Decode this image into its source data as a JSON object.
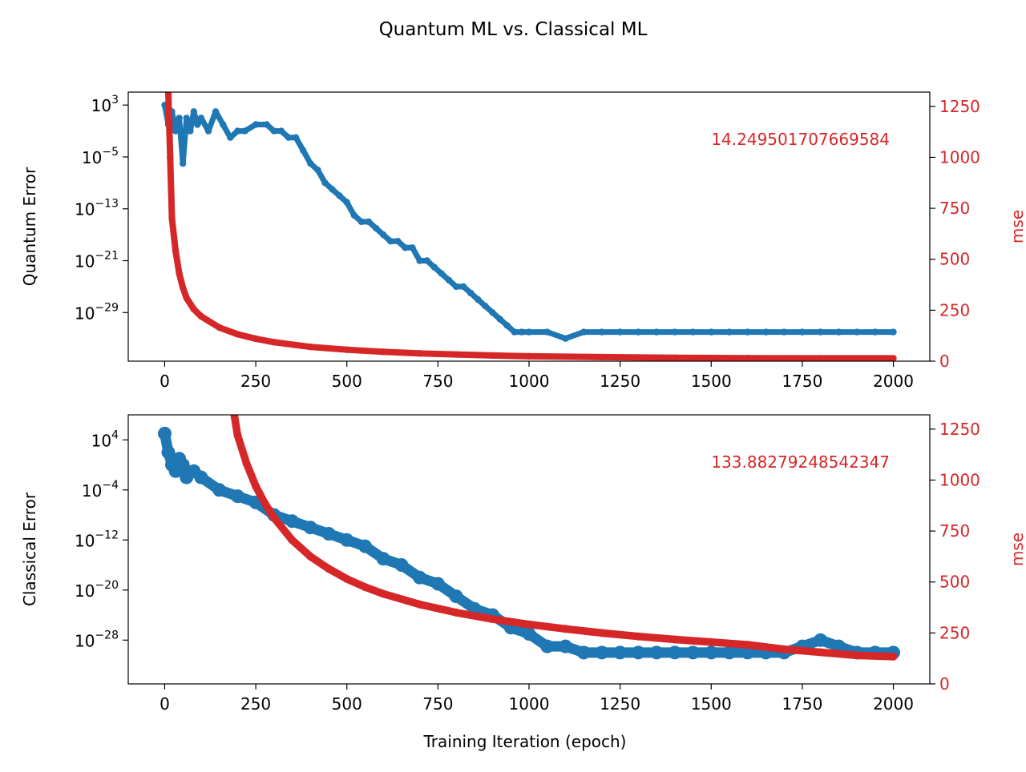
{
  "figure": {
    "title": "Quantum ML vs. Classical ML",
    "xlabel": "Training Iteration (epoch)"
  },
  "colors": {
    "error": "#1f77b4",
    "mse": "#d62728",
    "axis": "#000000"
  },
  "chart_data": [
    {
      "type": "scatter",
      "panel": "top",
      "xlabel": "",
      "ylabel": "Quantum Error",
      "y2label": "mse",
      "annotation": "14.249501707669584",
      "x_range": [
        -100,
        2100
      ],
      "x_ticks": [
        0,
        250,
        500,
        750,
        1000,
        1250,
        1500,
        1750,
        2000
      ],
      "y_scale": "log",
      "y_log_range": [
        -36.5,
        5
      ],
      "y_ticks": [
        {
          "exp": 3,
          "label": "10^3"
        },
        {
          "exp": -5,
          "label": "10^-5"
        },
        {
          "exp": -13,
          "label": "10^-13"
        },
        {
          "exp": -21,
          "label": "10^-21"
        },
        {
          "exp": -29,
          "label": "10^-29"
        }
      ],
      "y2_range": [
        0,
        1320
      ],
      "y2_ticks": [
        0,
        250,
        500,
        750,
        1000,
        1250
      ],
      "legend": "none",
      "grid": false,
      "series": [
        {
          "role": "error",
          "axis": "left",
          "x": [
            0,
            10,
            20,
            30,
            40,
            50,
            60,
            70,
            80,
            90,
            100,
            120,
            140,
            160,
            180,
            200,
            220,
            250,
            280,
            300,
            320,
            340,
            360,
            380,
            400,
            420,
            440,
            460,
            480,
            500,
            520,
            540,
            560,
            580,
            600,
            620,
            640,
            660,
            680,
            700,
            720,
            740,
            760,
            780,
            800,
            820,
            840,
            860,
            880,
            900,
            920,
            940,
            960,
            980,
            1000,
            1050,
            1100,
            1150,
            1200,
            1250,
            1300,
            1350,
            1400,
            1450,
            1500,
            1550,
            1600,
            1650,
            1700,
            1750,
            1800,
            1850,
            1900,
            1950,
            2000
          ],
          "log10_y": [
            3,
            0,
            2,
            -1,
            1,
            -6,
            1,
            -1,
            2,
            0,
            1,
            -1,
            2,
            0,
            -2,
            -1,
            -1,
            0,
            0,
            -1,
            -1,
            -2,
            -2,
            -4,
            -6,
            -7,
            -9,
            -10,
            -11,
            -12,
            -14,
            -15,
            -15,
            -16,
            -17,
            -18,
            -18,
            -19,
            -19,
            -21,
            -21,
            -22,
            -23,
            -24,
            -25,
            -25,
            -26,
            -27,
            -28,
            -29,
            -30,
            -31,
            -32,
            -32,
            -32,
            -32,
            -33,
            -32,
            -32,
            -32,
            -32,
            -32,
            -32,
            -32,
            -32,
            -32,
            -32,
            -32,
            -32,
            -32,
            -32,
            -32,
            -32,
            -32,
            -32
          ]
        },
        {
          "role": "mse",
          "axis": "right",
          "x": [
            10,
            15,
            20,
            30,
            40,
            50,
            60,
            80,
            100,
            150,
            200,
            250,
            300,
            400,
            500,
            600,
            700,
            800,
            900,
            1000,
            1200,
            1400,
            1600,
            1800,
            2000
          ],
          "values": [
            1320,
            1000,
            700,
            540,
            430,
            360,
            310,
            255,
            220,
            165,
            132,
            110,
            93,
            70,
            56,
            46,
            38,
            33,
            28,
            24,
            20,
            17,
            15,
            14,
            14
          ]
        }
      ]
    },
    {
      "type": "scatter",
      "panel": "bottom",
      "xlabel": "Training Iteration (epoch)",
      "ylabel": "Classical Error",
      "y2label": "mse",
      "annotation": "133.88279248542347",
      "x_range": [
        -100,
        2100
      ],
      "x_ticks": [
        0,
        250,
        500,
        750,
        1000,
        1250,
        1500,
        1750,
        2000
      ],
      "y_scale": "log",
      "y_log_range": [
        -35,
        8
      ],
      "y_ticks": [
        {
          "exp": 4,
          "label": "10^4"
        },
        {
          "exp": -4,
          "label": "10^-4"
        },
        {
          "exp": -12,
          "label": "10^-12"
        },
        {
          "exp": -20,
          "label": "10^-20"
        },
        {
          "exp": -28,
          "label": "10^-28"
        }
      ],
      "y2_range": [
        0,
        1320
      ],
      "y2_ticks": [
        0,
        250,
        500,
        750,
        1000,
        1250
      ],
      "legend": "none",
      "grid": false,
      "series": [
        {
          "role": "error",
          "axis": "left",
          "x": [
            0,
            10,
            20,
            30,
            40,
            50,
            60,
            80,
            100,
            150,
            200,
            250,
            300,
            350,
            400,
            450,
            500,
            550,
            600,
            650,
            700,
            750,
            800,
            850,
            900,
            950,
            1000,
            1050,
            1100,
            1150,
            1200,
            1250,
            1300,
            1350,
            1400,
            1450,
            1500,
            1550,
            1600,
            1650,
            1700,
            1750,
            1800,
            1850,
            1900,
            1950,
            2000
          ],
          "log10_y": [
            5,
            2,
            0,
            -1,
            1,
            0,
            -2,
            -1,
            -2,
            -4,
            -5,
            -6,
            -8,
            -9,
            -10,
            -11,
            -12,
            -13,
            -15,
            -16,
            -18,
            -19,
            -21,
            -23,
            -24,
            -26,
            -27,
            -29,
            -29,
            -30,
            -30,
            -30,
            -30,
            -30,
            -30,
            -30,
            -30,
            -30,
            -30,
            -30,
            -30,
            -29,
            -28,
            -29,
            -30,
            -30,
            -30
          ]
        },
        {
          "role": "mse",
          "axis": "right",
          "x": [
            190,
            200,
            225,
            250,
            275,
            300,
            350,
            400,
            450,
            500,
            550,
            600,
            700,
            800,
            900,
            1000,
            1100,
            1200,
            1300,
            1400,
            1500,
            1600,
            1700,
            1800,
            1900,
            2000
          ],
          "values": [
            1330,
            1220,
            1080,
            970,
            885,
            815,
            705,
            625,
            565,
            515,
            475,
            442,
            390,
            350,
            318,
            292,
            270,
            250,
            233,
            218,
            205,
            192,
            170,
            155,
            140,
            134
          ]
        }
      ]
    }
  ]
}
